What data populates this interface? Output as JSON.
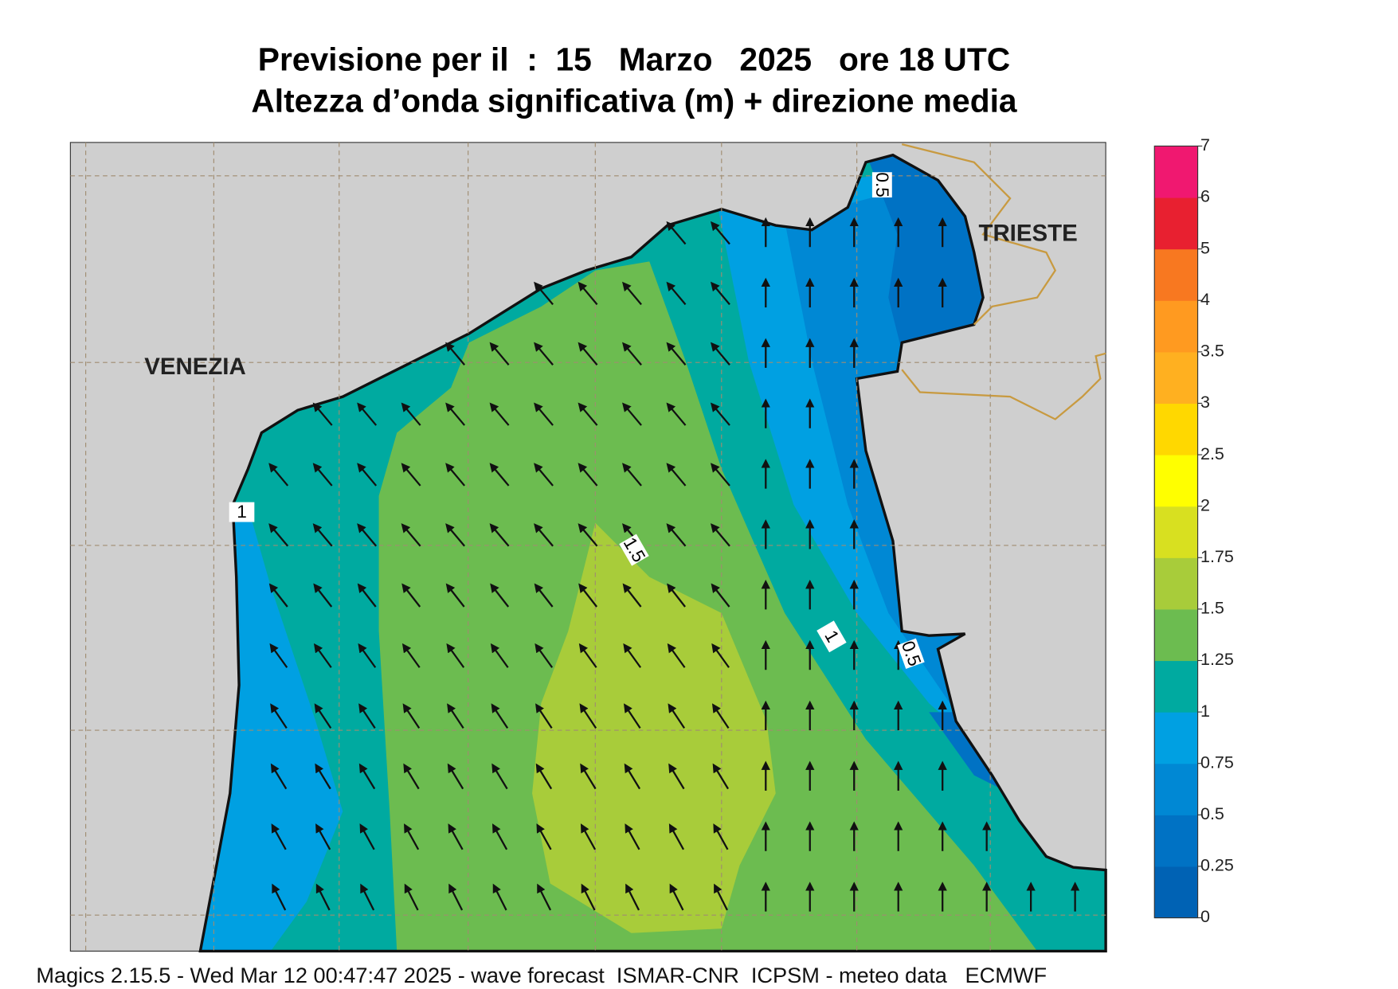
{
  "header": {
    "title_line1": "Previsione per il  :  15   Marzo   2025   ore 18 UTC",
    "title_line2": "Altezza d’onda significativa (m) + direzione media"
  },
  "map": {
    "cities": [
      "VENEZIA",
      "TRIESTE"
    ],
    "contour_labels": [
      "0.5",
      "1",
      "1.5",
      "1",
      "0.5"
    ]
  },
  "colorbar": {
    "ticks": [
      0,
      0.25,
      0.5,
      0.75,
      1,
      1.25,
      1.5,
      1.75,
      2,
      2.5,
      3,
      3.5,
      4,
      5,
      6,
      7
    ],
    "colors": [
      "#0062b4",
      "#0072c4",
      "#0088d4",
      "#00a0e2",
      "#00aaa0",
      "#6cbc50",
      "#a8cc3a",
      "#d8e020",
      "#ffff00",
      "#ffd800",
      "#ffb020",
      "#ff9a20",
      "#f87820",
      "#e82030",
      "#f01870"
    ]
  },
  "footer": "Magics 2.15.5 - Wed Mar 12 00:47:47 2025 - wave forecast  ISMAR-CNR  ICPSM - meteo data   ECMWF"
}
